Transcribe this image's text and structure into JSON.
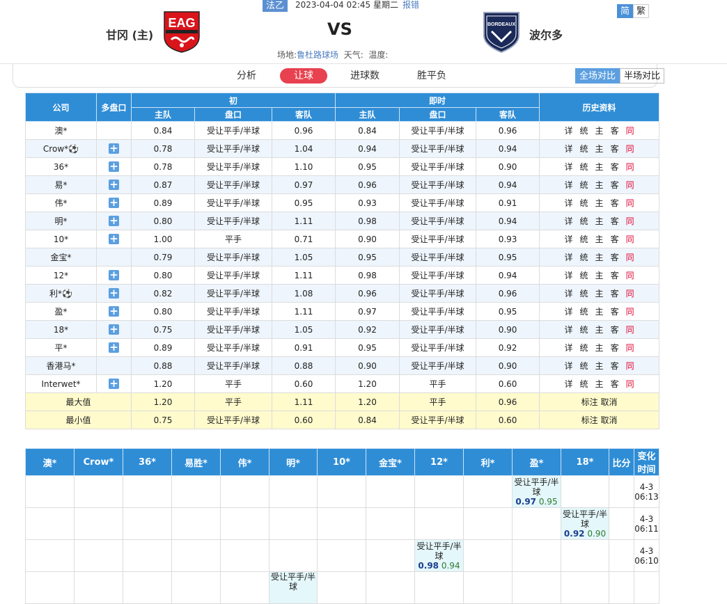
{
  "header": {
    "league": "法乙",
    "datetime": "2023-04-04 02:45 星期二",
    "report_label": "报错",
    "home_team": "甘冈 (主)",
    "away_team": "波尔多",
    "vs": "VS",
    "venue_label": "场地:",
    "venue": "鲁杜路球场",
    "weather_label": "天气:",
    "temp_label": "温度:",
    "lang_simplified": "简",
    "lang_traditional": "繁",
    "home_logo_text": "EAG",
    "away_logo_text": "BORDEAUX"
  },
  "tabs": [
    "分析",
    "让球",
    "进球数",
    "胜平负"
  ],
  "compare": {
    "full": "全场对比",
    "half": "半场对比"
  },
  "odds_table": {
    "headers": {
      "company": "公司",
      "multi": "多盘口",
      "initial": "初",
      "live": "即时",
      "history": "历史资料",
      "home": "主队",
      "line": "盘口",
      "away": "客队"
    },
    "history_links": [
      "详",
      "统",
      "主",
      "客",
      "同"
    ],
    "rows": [
      {
        "company": "澳*",
        "plus": false,
        "i_home": "0.84",
        "i_line": "受让平手/半球",
        "i_away": "0.96",
        "l_home": "0.84",
        "l_line": "受让平手/半球",
        "l_away": "0.96"
      },
      {
        "company": "Crow*⚽",
        "plus": true,
        "i_home": "0.78",
        "i_line": "受让平手/半球",
        "i_away": "1.04",
        "l_home": "0.94",
        "l_line": "受让平手/半球",
        "l_away": "0.94"
      },
      {
        "company": "36*",
        "plus": true,
        "i_home": "0.78",
        "i_line": "受让平手/半球",
        "i_away": "1.10",
        "l_home": "0.95",
        "l_line": "受让平手/半球",
        "l_away": "0.90"
      },
      {
        "company": "易*",
        "plus": true,
        "i_home": "0.87",
        "i_line": "受让平手/半球",
        "i_away": "0.97",
        "l_home": "0.96",
        "l_line": "受让平手/半球",
        "l_away": "0.94"
      },
      {
        "company": "伟*",
        "plus": true,
        "i_home": "0.89",
        "i_line": "受让平手/半球",
        "i_away": "0.95",
        "l_home": "0.93",
        "l_line": "受让平手/半球",
        "l_away": "0.91"
      },
      {
        "company": "明*",
        "plus": true,
        "i_home": "0.80",
        "i_line": "受让平手/半球",
        "i_away": "1.11",
        "l_home": "0.98",
        "l_line": "受让平手/半球",
        "l_away": "0.94"
      },
      {
        "company": "10*",
        "plus": true,
        "i_home": "1.00",
        "i_line": "平手",
        "i_away": "0.71",
        "l_home": "0.90",
        "l_line": "受让平手/半球",
        "l_away": "0.93"
      },
      {
        "company": "金宝*",
        "plus": false,
        "i_home": "0.79",
        "i_line": "受让平手/半球",
        "i_away": "1.05",
        "l_home": "0.95",
        "l_line": "受让平手/半球",
        "l_away": "0.95"
      },
      {
        "company": "12*",
        "plus": true,
        "i_home": "0.80",
        "i_line": "受让平手/半球",
        "i_away": "1.11",
        "l_home": "0.98",
        "l_line": "受让平手/半球",
        "l_away": "0.94"
      },
      {
        "company": "利*⚽",
        "plus": true,
        "i_home": "0.82",
        "i_line": "受让平手/半球",
        "i_away": "1.08",
        "l_home": "0.96",
        "l_line": "受让平手/半球",
        "l_away": "0.96"
      },
      {
        "company": "盈*",
        "plus": true,
        "i_home": "0.80",
        "i_line": "受让平手/半球",
        "i_away": "1.11",
        "l_home": "0.97",
        "l_line": "受让平手/半球",
        "l_away": "0.95"
      },
      {
        "company": "18*",
        "plus": true,
        "i_home": "0.75",
        "i_line": "受让平手/半球",
        "i_away": "1.05",
        "l_home": "0.92",
        "l_line": "受让平手/半球",
        "l_away": "0.90"
      },
      {
        "company": "平*",
        "plus": true,
        "i_home": "0.89",
        "i_line": "受让平手/半球",
        "i_away": "0.91",
        "l_home": "0.95",
        "l_line": "受让平手/半球",
        "l_away": "0.92"
      },
      {
        "company": "香港马*",
        "plus": false,
        "i_home": "0.88",
        "i_line": "受让平手/半球",
        "i_away": "0.88",
        "l_home": "0.90",
        "l_line": "受让平手/半球",
        "l_away": "0.90"
      },
      {
        "company": "Interwet*",
        "plus": true,
        "i_home": "1.20",
        "i_line": "平手",
        "i_away": "0.60",
        "l_home": "1.20",
        "l_line": "平手",
        "l_away": "0.60"
      }
    ],
    "summary": [
      {
        "label": "最大值",
        "i_home": "1.20",
        "i_line": "平手",
        "i_away": "1.11",
        "l_home": "1.20",
        "l_line": "平手",
        "l_away": "0.96",
        "extra": "标注 取消"
      },
      {
        "label": "最小值",
        "i_home": "0.75",
        "i_line": "受让平手/半球",
        "i_away": "0.60",
        "l_home": "0.84",
        "l_line": "受让平手/半球",
        "l_away": "0.60",
        "extra": "标注 取消"
      }
    ]
  },
  "changes_table": {
    "headers": [
      "澳*",
      "Crow*",
      "36*",
      "易胜*",
      "伟*",
      "明*",
      "10*",
      "金宝*",
      "12*",
      "利*",
      "盈*",
      "18*",
      "比分",
      "变化时间"
    ],
    "rows": [
      {
        "col": 10,
        "line": "受让平手/半球",
        "home": "0.97",
        "away": "0.95",
        "time": "4-3 06:13"
      },
      {
        "col": 11,
        "line": "受让平手/半球",
        "home": "0.92",
        "away": "0.90",
        "time": "4-3 06:11"
      },
      {
        "col": 8,
        "line": "受让平手/半球",
        "home": "0.98",
        "away": "0.94",
        "time": "4-3 06:10"
      }
    ],
    "partial_row": {
      "col": 5,
      "line": "受让平手/半球"
    }
  },
  "colors": {
    "header_blue": "#2f8dd6",
    "tab_red": "#e8414f",
    "summary_yellow": "#fffbcd",
    "alt_row": "#eef5fc",
    "link_red": "#e2002e"
  }
}
